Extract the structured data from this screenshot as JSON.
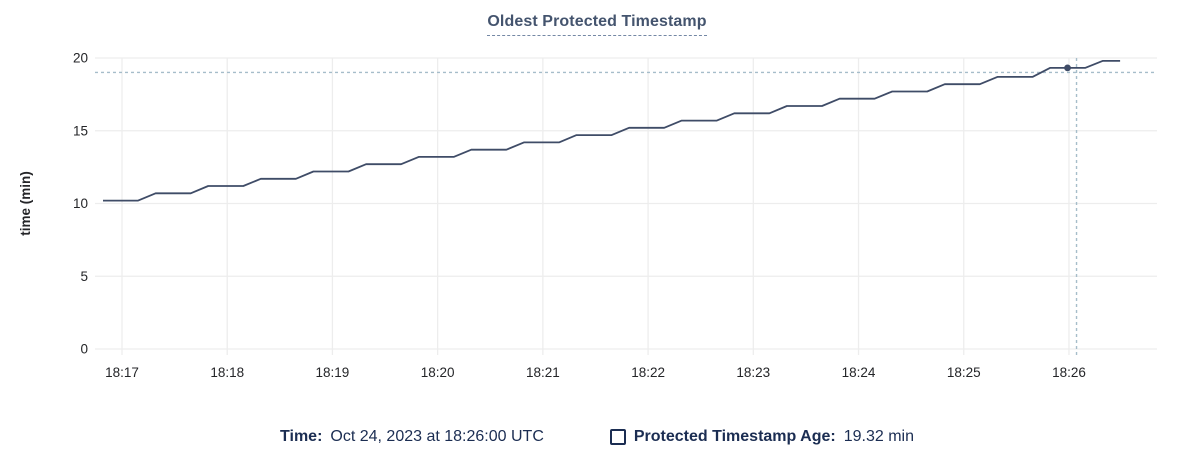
{
  "chart_data": {
    "type": "line",
    "title": "Oldest Protected Timestamp",
    "xlabel": "",
    "ylabel": "time (min)",
    "ylim": [
      0,
      20
    ],
    "yticks": [
      0,
      5,
      10,
      15,
      20
    ],
    "ytick_labels": [
      "0",
      "5",
      "10",
      "15",
      "20"
    ],
    "xtick_labels": [
      "18:17",
      "18:18",
      "18:19",
      "18:20",
      "18:21",
      "18:22",
      "18:23",
      "18:24",
      "18:25",
      "18:26"
    ],
    "grid": true,
    "legend_position": "bottom",
    "series": [
      {
        "name": "Protected Timestamp Age",
        "unit": "min",
        "start_time": "18:16:50",
        "sample_interval_sec": 10,
        "values": [
          10.2,
          10.2,
          10.2,
          10.7,
          10.7,
          10.7,
          11.2,
          11.2,
          11.2,
          11.7,
          11.7,
          11.7,
          12.2,
          12.2,
          12.2,
          12.7,
          12.7,
          12.7,
          13.2,
          13.2,
          13.2,
          13.7,
          13.7,
          13.7,
          14.2,
          14.2,
          14.2,
          14.7,
          14.7,
          14.7,
          15.2,
          15.2,
          15.2,
          15.7,
          15.7,
          15.7,
          16.2,
          16.2,
          16.2,
          16.7,
          16.7,
          16.7,
          17.2,
          17.2,
          17.2,
          17.7,
          17.7,
          17.7,
          18.2,
          18.2,
          18.2,
          18.7,
          18.7,
          18.7,
          19.32,
          19.32,
          19.32,
          19.8,
          19.8
        ]
      }
    ],
    "hover": {
      "index": 55,
      "time": "18:26:00",
      "value": 19.32
    }
  },
  "legend": {
    "time_label": "Time:",
    "time_value": "Oct 24, 2023 at 18:26:00 UTC",
    "series_label": "Protected Timestamp Age:",
    "series_value": "19.32 min"
  },
  "colors": {
    "title": "#44546e",
    "legend_text": "#1b2d52",
    "line": "#3f4c67",
    "grid": "#ededed",
    "tick_text": "#242528",
    "crosshair": "#a6bdca"
  }
}
